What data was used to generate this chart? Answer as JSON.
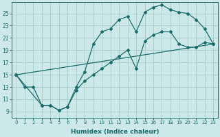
{
  "xlabel": "Humidex (Indice chaleur)",
  "bg_color": "#cce8e8",
  "grid_color": "#aacfcf",
  "line_color": "#1a6b6b",
  "xlim": [
    -0.5,
    23.5
  ],
  "ylim": [
    8.0,
    26.8
  ],
  "xticks": [
    0,
    1,
    2,
    3,
    4,
    5,
    6,
    7,
    8,
    9,
    10,
    11,
    12,
    13,
    14,
    15,
    16,
    17,
    18,
    19,
    20,
    21,
    22,
    23
  ],
  "yticks": [
    9,
    11,
    13,
    15,
    17,
    19,
    21,
    23,
    25
  ],
  "curve1_x": [
    0,
    1,
    2,
    3,
    4,
    5,
    6,
    7,
    8,
    9,
    10,
    11,
    12,
    13,
    14,
    15,
    16,
    17,
    18,
    19,
    20,
    21,
    22,
    23
  ],
  "curve1_y": [
    15,
    13,
    13,
    10,
    10,
    9.2,
    9.8,
    13,
    15.5,
    20,
    22,
    22.5,
    24,
    24.5,
    22,
    25.2,
    26,
    26.4,
    25.6,
    25.2,
    25,
    24,
    22.5,
    20
  ],
  "curve2_x": [
    0,
    3,
    4,
    5,
    6,
    7,
    8,
    9,
    10,
    11,
    12,
    13,
    14,
    15,
    16,
    17,
    18,
    19,
    20,
    21,
    22,
    23
  ],
  "curve2_y": [
    15,
    10,
    10,
    9.2,
    9.8,
    12.5,
    14,
    15,
    16,
    17,
    18,
    19,
    16,
    20.5,
    21.5,
    22,
    22,
    20,
    19.5,
    19.5,
    20.3,
    20
  ],
  "curve3_x": [
    0,
    23
  ],
  "curve3_y": [
    15,
    20
  ]
}
